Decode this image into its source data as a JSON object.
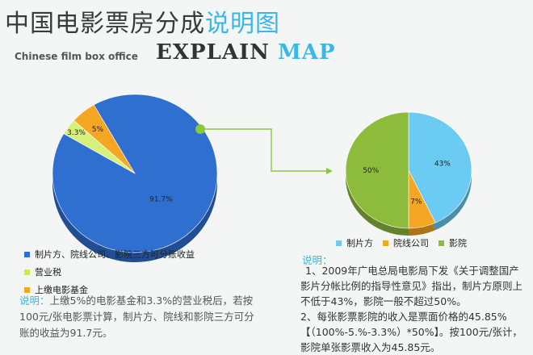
{
  "title": {
    "part1": "中国电影票房分成",
    "part2": "说明图"
  },
  "subtitle_en": "Chinese film box office",
  "explain": {
    "part1": "EXPLAIN",
    "part2": "MAP"
  },
  "colors": {
    "blue": "#2f6fd0",
    "yellowgreen": "#d6f07a",
    "orange": "#f5a623",
    "cyan": "#6ccbf2",
    "green": "#8dbb3c",
    "connector": "#8cc63f"
  },
  "chart_data": [
    {
      "type": "pie",
      "slices": [
        {
          "label": "制片方、院线公司、影院三方可分账收益",
          "value": 91.7,
          "display": "91.7%",
          "color": "#2f6fd0"
        },
        {
          "label": "营业税",
          "value": 3.3,
          "display": "3.3%",
          "color": "#d6f07a"
        },
        {
          "label": "上缴电影基金",
          "value": 5,
          "display": "5%",
          "color": "#f5a623"
        }
      ]
    },
    {
      "type": "pie",
      "slices": [
        {
          "label": "制片方",
          "value": 43,
          "display": "43%",
          "color": "#6ccbf2"
        },
        {
          "label": "院线公司",
          "value": 7,
          "display": "7%",
          "color": "#f5a623"
        },
        {
          "label": "影院",
          "value": 50,
          "display": "50%",
          "color": "#8dbb3c"
        }
      ]
    }
  ],
  "note_left": {
    "label": "说明：",
    "text": "上缴5%的电影基金和3.3%的营业税后，若按100元/张电影票计算，制片方、院线和影院三方可分账的收益为91.7元。"
  },
  "note_right": {
    "label": "说明：",
    "line1": "1、2009年广电总局电影局下发《关于调整国产影片分帐比例的指导性意见》指出，制片方原则上不低于43%，影院一般不超过50%。",
    "line2": "2、每张影票影院的收入是票面价格的45.85%【（100%-5.%-3.3%）*50%】。按100元/张计，影院单张影票收入为45.85元。"
  }
}
